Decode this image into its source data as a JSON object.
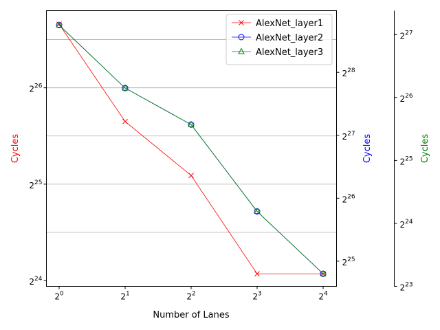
{
  "chart_data": {
    "type": "line",
    "x": [
      1,
      2,
      4,
      8,
      16
    ],
    "x_tick_labels": [
      {
        "base": "2",
        "exp": "0"
      },
      {
        "base": "2",
        "exp": "1"
      },
      {
        "base": "2",
        "exp": "2"
      },
      {
        "base": "2",
        "exp": "3"
      },
      {
        "base": "2",
        "exp": "4"
      }
    ],
    "x_scale": "log2",
    "xlabel": "Number of Lanes",
    "grid": "horizontal (left axis)",
    "legend_position": "top-right",
    "axes": [
      {
        "id": "left",
        "ylabel": "Cycles",
        "color": "#ff0000",
        "scale": "log2",
        "ylim_log2": [
          23.94,
          26.8
        ],
        "tick_labels": [
          {
            "base": "2",
            "exp": "24"
          },
          {
            "base": "2",
            "exp": "25"
          },
          {
            "base": "2",
            "exp": "26"
          }
        ],
        "tick_values_log2": [
          24,
          25,
          26
        ]
      },
      {
        "id": "right1",
        "ylabel": "Cycles",
        "color": "#0000ff",
        "scale": "log2",
        "ylim_log2": [
          24.6,
          28.98
        ],
        "tick_labels": [
          {
            "base": "2",
            "exp": "25"
          },
          {
            "base": "2",
            "exp": "26"
          },
          {
            "base": "2",
            "exp": "27"
          },
          {
            "base": "2",
            "exp": "28"
          }
        ],
        "tick_values_log2": [
          25,
          26,
          27,
          28
        ]
      },
      {
        "id": "right2",
        "ylabel": "Cycles",
        "color": "#008000",
        "scale": "log2",
        "ylim_log2": [
          23.0,
          27.38
        ],
        "tick_labels": [
          {
            "base": "2",
            "exp": "23"
          },
          {
            "base": "2",
            "exp": "24"
          },
          {
            "base": "2",
            "exp": "25"
          },
          {
            "base": "2",
            "exp": "26"
          },
          {
            "base": "2",
            "exp": "27"
          }
        ],
        "tick_values_log2": [
          23,
          24,
          25,
          26,
          27
        ]
      }
    ],
    "series": [
      {
        "name": "AlexNet_layer1",
        "axis": "left",
        "color": "#ff0000",
        "marker": "x",
        "log2_values": [
          26.66,
          25.65,
          25.09,
          24.07,
          24.07
        ]
      },
      {
        "name": "AlexNet_layer2",
        "axis": "right1",
        "color": "#0000ff",
        "marker": "circle",
        "log2_values": [
          28.75,
          27.75,
          27.17,
          25.79,
          24.8
        ]
      },
      {
        "name": "AlexNet_layer3",
        "axis": "right2",
        "color": "#008000",
        "marker": "triangle",
        "log2_values": [
          27.15,
          26.15,
          25.57,
          24.19,
          23.2
        ]
      }
    ]
  }
}
